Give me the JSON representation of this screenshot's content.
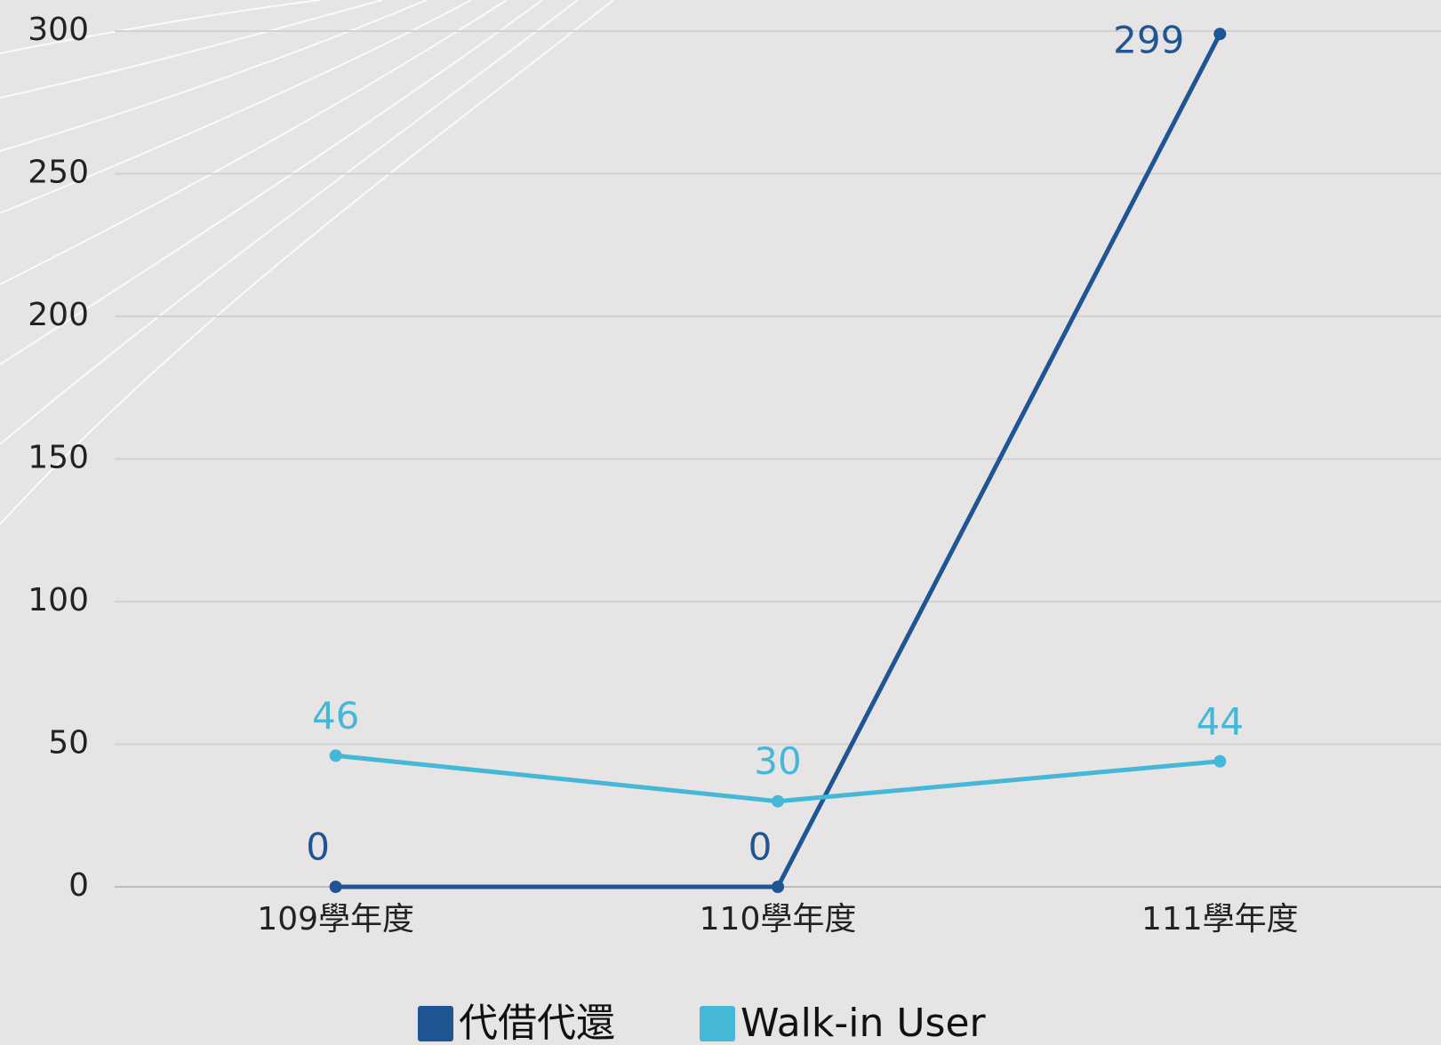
{
  "chart_data": {
    "type": "line",
    "categories": [
      "109學年度",
      "110學年度",
      "111學年度"
    ],
    "series": [
      {
        "name": "代借代還",
        "color": "#1f5592",
        "values": [
          0,
          0,
          299
        ]
      },
      {
        "name": "Walk-in User",
        "color": "#45b8d8",
        "values": [
          46,
          30,
          44
        ]
      }
    ],
    "ylim": [
      0,
      300
    ],
    "yticks": [
      0,
      50,
      100,
      150,
      200,
      250,
      300
    ],
    "grid": true,
    "legend": "bottom"
  }
}
